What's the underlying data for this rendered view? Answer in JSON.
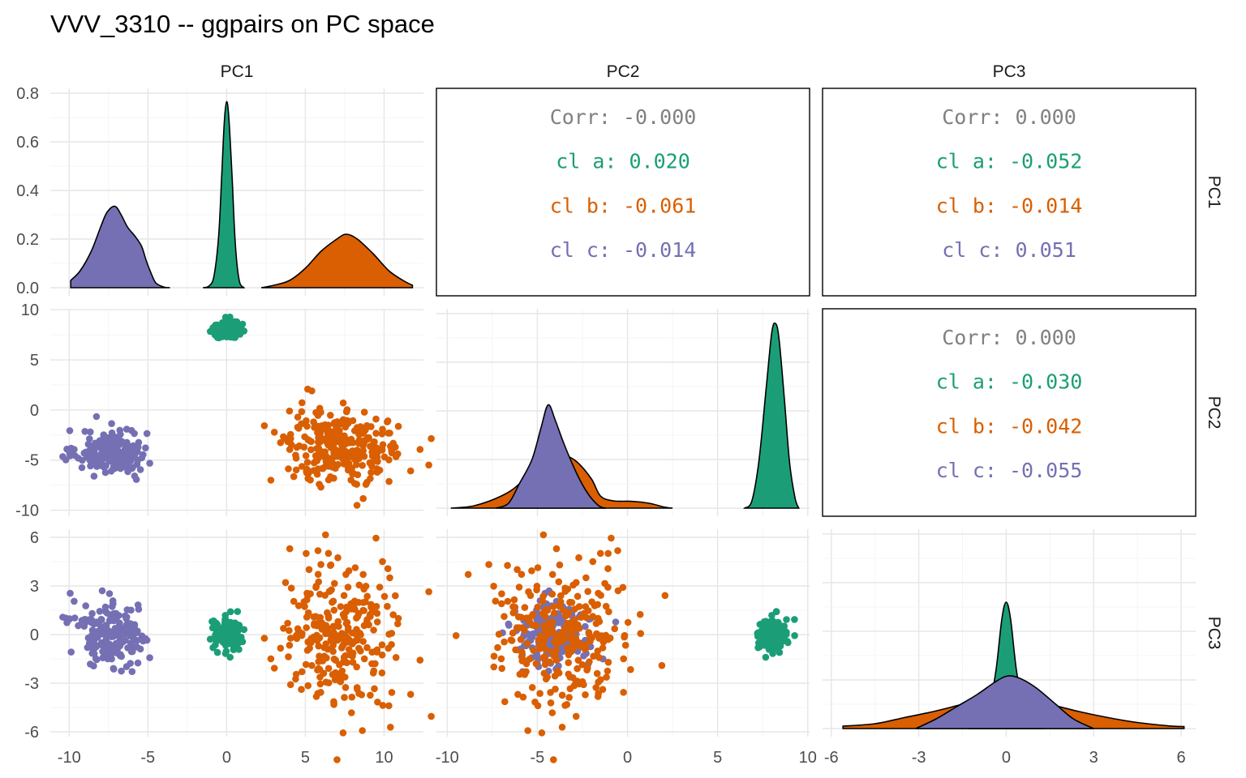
{
  "title": "VVV_3310 -- ggpairs on PC space",
  "colors": {
    "a": "#1b9e77",
    "b": "#d95f02",
    "c": "#7570b3",
    "corr": "#808080"
  },
  "variables": [
    "PC1",
    "PC2",
    "PC3"
  ],
  "chart_data": {
    "type": "scatter",
    "title": "VVV_3310 -- ggpairs on PC space",
    "variables": [
      "PC1",
      "PC2",
      "PC3"
    ],
    "groups": [
      {
        "key": "a",
        "color": "#1b9e77"
      },
      {
        "key": "b",
        "color": "#d95f02"
      },
      {
        "key": "c",
        "color": "#7570b3"
      }
    ],
    "axes": {
      "PC1": {
        "ticks": [
          -10,
          -5,
          0,
          5,
          10
        ],
        "tick_labels": [
          "-10",
          "-5",
          "0",
          "5",
          "10"
        ],
        "range": [
          -11.2,
          12.5
        ]
      },
      "PC2": {
        "ticks": [
          -10,
          -5,
          0,
          5,
          10
        ],
        "tick_labels": [
          "-10",
          "-5",
          "0",
          "5",
          "10"
        ],
        "range": [
          -10.6,
          10.1
        ]
      },
      "PC3": {
        "ticks": [
          -6,
          -3,
          0,
          3,
          6
        ],
        "tick_labels": [
          "-6",
          "-3",
          "0",
          "3",
          "6"
        ],
        "range": [
          -6.3,
          6.5
        ]
      }
    },
    "density_axis": {
      "ticks": [
        0,
        0.2,
        0.4,
        0.6,
        0.8
      ],
      "tick_labels": [
        "0.0",
        "0.2",
        "0.4",
        "0.6",
        "0.8"
      ],
      "range": [
        0,
        0.82
      ]
    },
    "densities": {
      "PC1": {
        "c": [
          [
            -9.9,
            0.03
          ],
          [
            -9.3,
            0.07
          ],
          [
            -8.6,
            0.15
          ],
          [
            -8.0,
            0.25
          ],
          [
            -7.6,
            0.31
          ],
          [
            -7.1,
            0.335
          ],
          [
            -6.7,
            0.3
          ],
          [
            -6.3,
            0.25
          ],
          [
            -5.8,
            0.21
          ],
          [
            -5.4,
            0.17
          ],
          [
            -5.1,
            0.11
          ],
          [
            -4.8,
            0.06
          ],
          [
            -4.5,
            0.02
          ],
          [
            -4.0,
            0.003
          ],
          [
            -3.6,
            0.0
          ]
        ],
        "a": [
          [
            -1.5,
            0.0
          ],
          [
            -1.1,
            0.008
          ],
          [
            -0.8,
            0.05
          ],
          [
            -0.5,
            0.22
          ],
          [
            -0.3,
            0.48
          ],
          [
            -0.15,
            0.68
          ],
          [
            0.0,
            0.765
          ],
          [
            0.15,
            0.69
          ],
          [
            0.35,
            0.45
          ],
          [
            0.55,
            0.18
          ],
          [
            0.8,
            0.03
          ],
          [
            1.1,
            0.0
          ]
        ],
        "b": [
          [
            2.2,
            0.0
          ],
          [
            3.0,
            0.01
          ],
          [
            4.0,
            0.03
          ],
          [
            5.0,
            0.08
          ],
          [
            6.0,
            0.15
          ],
          [
            7.0,
            0.2
          ],
          [
            7.6,
            0.22
          ],
          [
            8.3,
            0.2
          ],
          [
            9.3,
            0.14
          ],
          [
            10.3,
            0.07
          ],
          [
            11.2,
            0.03
          ],
          [
            11.8,
            0.01
          ]
        ]
      },
      "PC2": {
        "b": [
          [
            -9.8,
            0.0
          ],
          [
            -8.5,
            0.01
          ],
          [
            -7.0,
            0.05
          ],
          [
            -6.0,
            0.1
          ],
          [
            -5.0,
            0.19
          ],
          [
            -4.2,
            0.24
          ],
          [
            -3.5,
            0.22
          ],
          [
            -2.8,
            0.19
          ],
          [
            -2.0,
            0.12
          ],
          [
            -1.5,
            0.05
          ],
          [
            -0.8,
            0.03
          ],
          [
            0.2,
            0.028
          ],
          [
            1.2,
            0.02
          ],
          [
            2.0,
            0.005
          ],
          [
            2.5,
            0.0
          ]
        ],
        "c": [
          [
            -7.3,
            0.0
          ],
          [
            -6.6,
            0.02
          ],
          [
            -6.0,
            0.1
          ],
          [
            -5.3,
            0.2
          ],
          [
            -4.8,
            0.33
          ],
          [
            -4.4,
            0.425
          ],
          [
            -4.0,
            0.36
          ],
          [
            -3.5,
            0.26
          ],
          [
            -2.8,
            0.14
          ],
          [
            -2.2,
            0.06
          ],
          [
            -1.6,
            0.01
          ],
          [
            -1.2,
            0.0
          ]
        ],
        "a": [
          [
            6.5,
            0.0
          ],
          [
            6.9,
            0.03
          ],
          [
            7.3,
            0.2
          ],
          [
            7.7,
            0.5
          ],
          [
            8.0,
            0.72
          ],
          [
            8.2,
            0.76
          ],
          [
            8.4,
            0.7
          ],
          [
            8.7,
            0.45
          ],
          [
            9.0,
            0.18
          ],
          [
            9.3,
            0.04
          ],
          [
            9.5,
            0.0
          ]
        ]
      },
      "PC3": {
        "b": [
          [
            -5.6,
            0.01
          ],
          [
            -4.5,
            0.02
          ],
          [
            -3.5,
            0.045
          ],
          [
            -2.5,
            0.07
          ],
          [
            -1.5,
            0.1
          ],
          [
            -0.8,
            0.12
          ],
          [
            0.0,
            0.13
          ],
          [
            0.8,
            0.12
          ],
          [
            1.5,
            0.1
          ],
          [
            2.5,
            0.07
          ],
          [
            3.5,
            0.045
          ],
          [
            4.5,
            0.025
          ],
          [
            5.5,
            0.012
          ],
          [
            6.1,
            0.008
          ]
        ],
        "a": [
          [
            -1.3,
            0.0
          ],
          [
            -0.9,
            0.02
          ],
          [
            -0.6,
            0.08
          ],
          [
            -0.35,
            0.24
          ],
          [
            -0.15,
            0.45
          ],
          [
            0.0,
            0.52
          ],
          [
            0.15,
            0.45
          ],
          [
            0.35,
            0.24
          ],
          [
            0.6,
            0.08
          ],
          [
            0.9,
            0.02
          ],
          [
            1.3,
            0.0
          ]
        ],
        "c": [
          [
            -3.1,
            0.0
          ],
          [
            -2.4,
            0.04
          ],
          [
            -1.7,
            0.09
          ],
          [
            -1.0,
            0.14
          ],
          [
            -0.4,
            0.19
          ],
          [
            0.0,
            0.215
          ],
          [
            0.4,
            0.21
          ],
          [
            1.0,
            0.17
          ],
          [
            1.7,
            0.1
          ],
          [
            2.3,
            0.04
          ],
          [
            3.0,
            0.0
          ]
        ]
      }
    },
    "clusters": {
      "a": {
        "n": 150,
        "mean": [
          0.0,
          8.1,
          0.0
        ],
        "sd": [
          0.45,
          0.45,
          0.5
        ]
      },
      "b": {
        "n": 280,
        "mean": [
          7.4,
          -3.7,
          0.0
        ],
        "sd": [
          1.85,
          2.0,
          2.35
        ]
      },
      "c": {
        "n": 200,
        "mean": [
          -7.3,
          -4.2,
          0.0
        ],
        "sd": [
          1.1,
          1.1,
          1.0
        ]
      }
    },
    "correlations": {
      "PC1-PC2": {
        "Corr": "-0.000",
        "a": "0.020",
        "b": "-0.061",
        "c": "-0.014"
      },
      "PC1-PC3": {
        "Corr": "0.000",
        "a": "-0.052",
        "b": "-0.014",
        "c": "0.051"
      },
      "PC2-PC3": {
        "Corr": "0.000",
        "a": "-0.030",
        "b": "-0.042",
        "c": "-0.055"
      }
    },
    "correlation_labels": {
      "overall": "Corr",
      "a": "cl a",
      "b": "cl b",
      "c": "cl c"
    },
    "grid": true
  }
}
